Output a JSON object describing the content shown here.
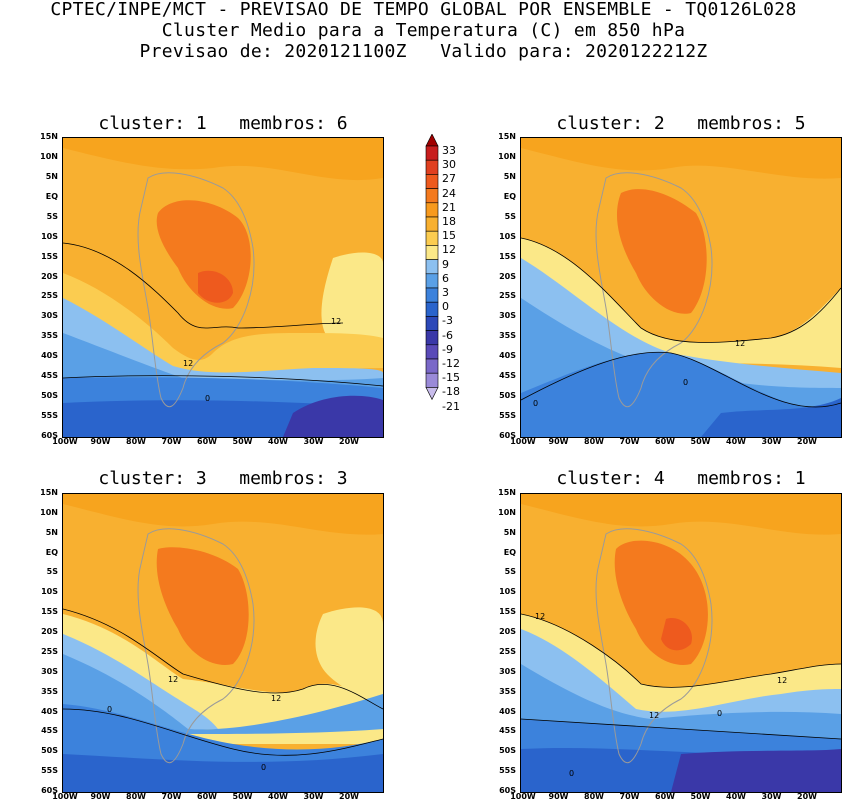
{
  "header": {
    "line1": "CPTEC/INPE/MCT - PREVISAO DE TEMPO GLOBAL POR ENSEMBLE - TQ0126L028",
    "line2": "Cluster Medio para a Temperatura (C) em 850 hPa",
    "line3": "Previsao de: 2020121100Z   Valido para: 2020122212Z"
  },
  "lat_labels": [
    "15N",
    "10N",
    "5N",
    "EQ",
    "5S",
    "10S",
    "15S",
    "20S",
    "25S",
    "30S",
    "35S",
    "40S",
    "45S",
    "50S",
    "55S",
    "60S"
  ],
  "lon_labels": [
    "100W",
    "90W",
    "80W",
    "70W",
    "60W",
    "50W",
    "40W",
    "30W",
    "20W"
  ],
  "colorbar": {
    "levels": [
      "33",
      "30",
      "27",
      "24",
      "21",
      "18",
      "15",
      "12",
      "9",
      "6",
      "3",
      "0",
      "-3",
      "-6",
      "-9",
      "-12",
      "-15",
      "-18",
      "-21"
    ],
    "colors": [
      "#a00000",
      "#c81e1e",
      "#e04020",
      "#ee5a1e",
      "#f47a1e",
      "#f79a1e",
      "#f8b030",
      "#fbcc50",
      "#fbe888",
      "#8cc0f0",
      "#5aa0e6",
      "#3c82dc",
      "#2a64cc",
      "#2c48b8",
      "#3a38a8",
      "#5a4ab8",
      "#7a68c8",
      "#9a8ad8",
      "#c8bceb"
    ]
  },
  "panels": [
    {
      "title": "cluster: 1   membros: 6",
      "contour_labels": [
        "12",
        "12",
        "0"
      ]
    },
    {
      "title": "cluster: 2   membros: 5",
      "contour_labels": [
        "12",
        "0",
        "0"
      ]
    },
    {
      "title": "cluster: 3   membros: 3",
      "contour_labels": [
        "12",
        "12",
        "0",
        "0"
      ]
    },
    {
      "title": "cluster: 4   membros: 1",
      "contour_labels": [
        "12",
        "12",
        "12",
        "0",
        "0"
      ]
    }
  ]
}
